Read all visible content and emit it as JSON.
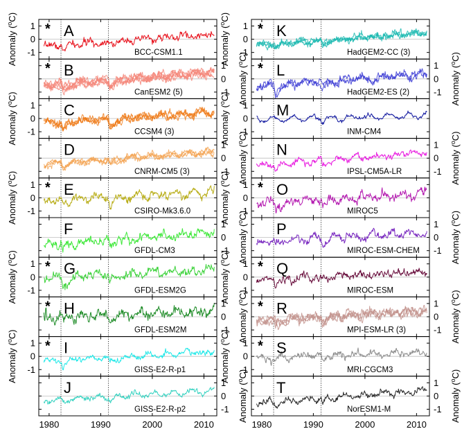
{
  "chart_data": {
    "type": "line",
    "layout_note": "20 stacked time-series panels in two columns (A-J left, K-T right); shared x axis per column",
    "x_ticks": [
      1980,
      1990,
      2000,
      2010
    ],
    "xlim": [
      1978,
      2012.5
    ],
    "ylim": [
      -1.5,
      1.5
    ],
    "y_ticks": [
      -1,
      0,
      1
    ],
    "y_tick_labels": [
      "-1",
      "0",
      "1"
    ],
    "ylabel_parts": [
      "Anomaly (",
      "o",
      "C)"
    ],
    "volcanic_eruption_lines": [
      1982.3,
      1991.5
    ],
    "zero_reference_line": true,
    "panels": [
      {
        "letter": "A",
        "model": "BCC-CSM1.1",
        "color": "#e8141e",
        "star": true,
        "members": 1,
        "trend": 0.028,
        "offset": -0.55,
        "noise": 0.14,
        "dip1": 0.3,
        "dip2": 0.15
      },
      {
        "letter": "B",
        "model": "CanESM2 (5)",
        "color": "#f4877a",
        "star": true,
        "members": 5,
        "trend": 0.03,
        "offset": -0.5,
        "noise": 0.13,
        "dip1": 0.45,
        "dip2": 0.45
      },
      {
        "letter": "C",
        "model": "CCSM4 (3)",
        "color": "#ef7a18",
        "star": false,
        "members": 3,
        "trend": 0.025,
        "offset": -0.35,
        "noise": 0.13,
        "dip1": 0.6,
        "dip2": 0.6
      },
      {
        "letter": "D",
        "model": "CNRM-CM5 (3)",
        "color": "#f3a352",
        "star": false,
        "members": 3,
        "trend": 0.028,
        "offset": -0.45,
        "noise": 0.11,
        "dip1": 0.3,
        "dip2": 0.35
      },
      {
        "letter": "E",
        "model": "CSIRO-Mk3.6.0",
        "color": "#b9ae1a",
        "star": true,
        "members": 1,
        "trend": 0.018,
        "offset": -0.2,
        "noise": 0.16,
        "dip1": 0.35,
        "dip2": 0.55
      },
      {
        "letter": "F",
        "model": "GFDL-CM3",
        "color": "#3fe83a",
        "star": false,
        "members": 1,
        "trend": 0.03,
        "offset": -0.6,
        "noise": 0.16,
        "dip1": 0.35,
        "dip2": 0.4
      },
      {
        "letter": "G",
        "model": "GFDL-ESM2G",
        "color": "#3cd23a",
        "star": true,
        "members": 1,
        "trend": 0.02,
        "offset": -0.1,
        "noise": 0.17,
        "dip1": 0.55,
        "dip2": 0.45
      },
      {
        "letter": "H",
        "model": "GFDL-ESM2M",
        "color": "#1f8c28",
        "star": true,
        "members": 1,
        "trend": 0.016,
        "offset": -0.1,
        "noise": 0.2,
        "dip1": 0.25,
        "dip2": 0.3
      },
      {
        "letter": "I",
        "model": "GISS-E2-R-p1",
        "color": "#1fe8e8",
        "star": true,
        "members": 1,
        "trend": 0.022,
        "offset": -0.35,
        "noise": 0.11,
        "dip1": 0.3,
        "dip2": 0.45
      },
      {
        "letter": "J",
        "model": "GISS-E2-R-p2",
        "color": "#35d2c0",
        "star": false,
        "members": 1,
        "trend": 0.022,
        "offset": -0.35,
        "noise": 0.1,
        "dip1": 0.15,
        "dip2": 0.3
      },
      {
        "letter": "K",
        "model": "HadGEM2-CC (3)",
        "color": "#1ab8b0",
        "star": true,
        "members": 3,
        "trend": 0.028,
        "offset": -0.45,
        "noise": 0.12,
        "dip1": 0.25,
        "dip2": 0.35
      },
      {
        "letter": "L",
        "model": "HadGEM2-ES (2)",
        "color": "#3a3ad4",
        "star": true,
        "members": 2,
        "trend": 0.03,
        "offset": -0.6,
        "noise": 0.15,
        "dip1": 0.55,
        "dip2": 0.4
      },
      {
        "letter": "M",
        "model": "INM-CM4",
        "color": "#131aa0",
        "star": false,
        "members": 1,
        "trend": 0.01,
        "offset": -0.1,
        "noise": 0.08,
        "dip1": 0.1,
        "dip2": 0.1
      },
      {
        "letter": "N",
        "model": "IPSL-CM5A-LR",
        "color": "#e81ee0",
        "star": false,
        "members": 1,
        "trend": 0.03,
        "offset": -0.55,
        "noise": 0.12,
        "dip1": 0.25,
        "dip2": 0.3
      },
      {
        "letter": "O",
        "model": "MIROC5",
        "color": "#b41ab0",
        "star": true,
        "members": 1,
        "trend": 0.022,
        "offset": -0.4,
        "noise": 0.17,
        "dip1": 0.35,
        "dip2": 0.3
      },
      {
        "letter": "P",
        "model": "MIROC-ESM-CHEM",
        "color": "#7a2ac0",
        "star": false,
        "members": 1,
        "trend": 0.022,
        "offset": -0.35,
        "noise": 0.15,
        "dip1": 0.3,
        "dip2": 0.35
      },
      {
        "letter": "Q",
        "model": "MIROC-ESM",
        "color": "#6a103e",
        "star": true,
        "members": 1,
        "trend": 0.02,
        "offset": -0.25,
        "noise": 0.15,
        "dip1": 0.35,
        "dip2": 0.3
      },
      {
        "letter": "R",
        "model": "MPI-ESM-LR (3)",
        "color": "#c2928c",
        "star": true,
        "members": 3,
        "trend": 0.022,
        "offset": -0.3,
        "noise": 0.17,
        "dip1": 0.4,
        "dip2": 0.35
      },
      {
        "letter": "S",
        "model": "MRI-CGCM3",
        "color": "#8c8c8c",
        "star": true,
        "members": 1,
        "trend": 0.012,
        "offset": -0.1,
        "noise": 0.13,
        "dip1": 0.2,
        "dip2": 0.25
      },
      {
        "letter": "T",
        "model": "NorESM1-M",
        "color": "#2a2a2a",
        "star": false,
        "members": 1,
        "trend": 0.028,
        "offset": -0.5,
        "noise": 0.12,
        "dip1": 0.25,
        "dip2": 0.4
      }
    ]
  }
}
